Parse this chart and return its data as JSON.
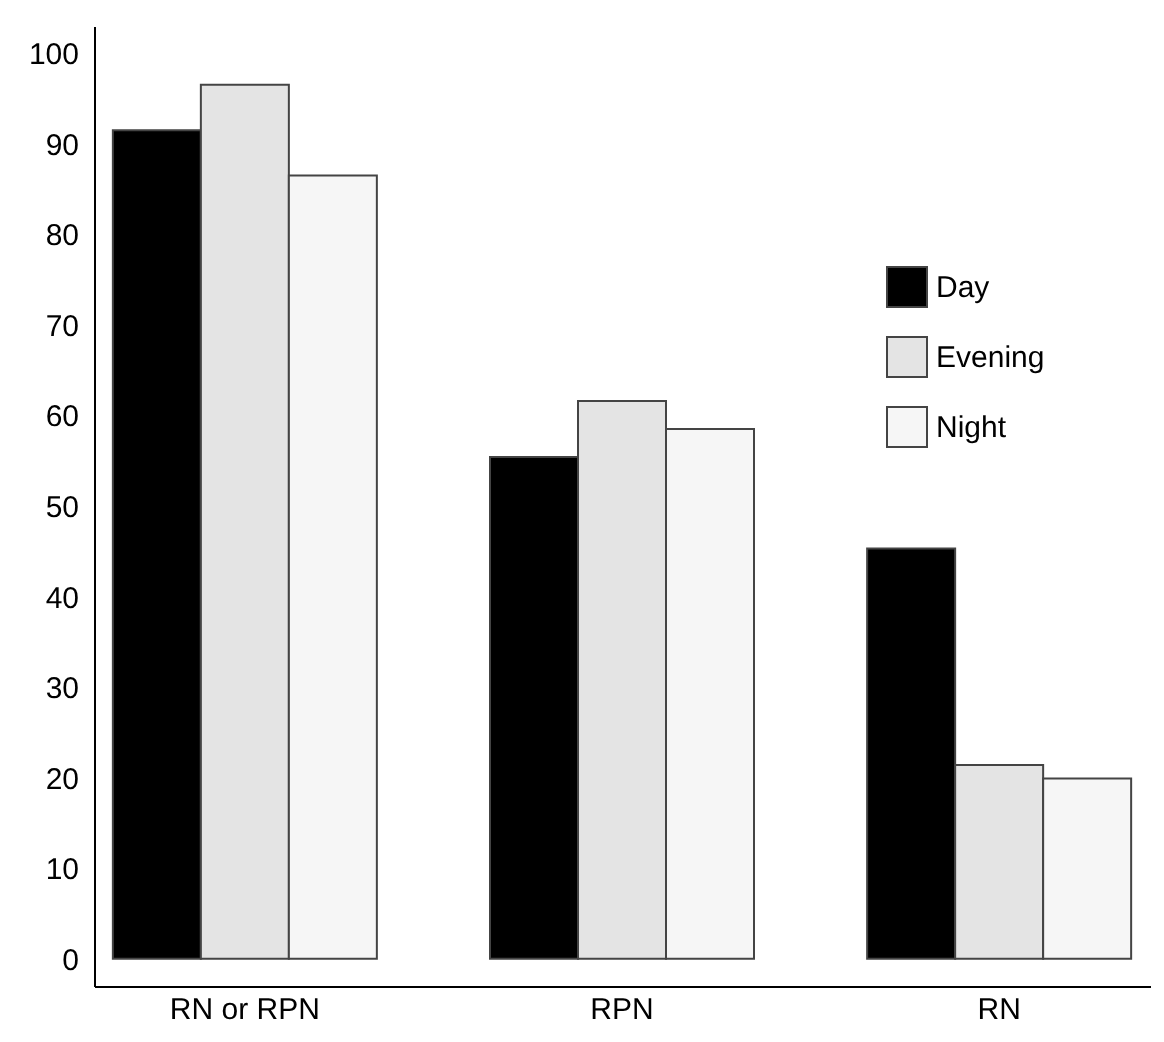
{
  "chart_data": {
    "type": "bar",
    "categories": [
      "RN or RPN",
      "RPN",
      "RN"
    ],
    "series": [
      {
        "name": "Day",
        "color": "#000000",
        "values": [
          91.5,
          55.4,
          45.3
        ]
      },
      {
        "name": "Evening",
        "color": "#e4e4e4",
        "values": [
          96.5,
          61.6,
          21.4
        ]
      },
      {
        "name": "Night",
        "color": "#f6f6f6",
        "values": [
          86.5,
          58.5,
          19.9
        ]
      }
    ],
    "ylim": [
      -3,
      103
    ],
    "yticks": [
      0,
      10,
      20,
      30,
      40,
      50,
      60,
      70,
      80,
      90,
      100
    ],
    "legend": "right",
    "grid": false
  }
}
